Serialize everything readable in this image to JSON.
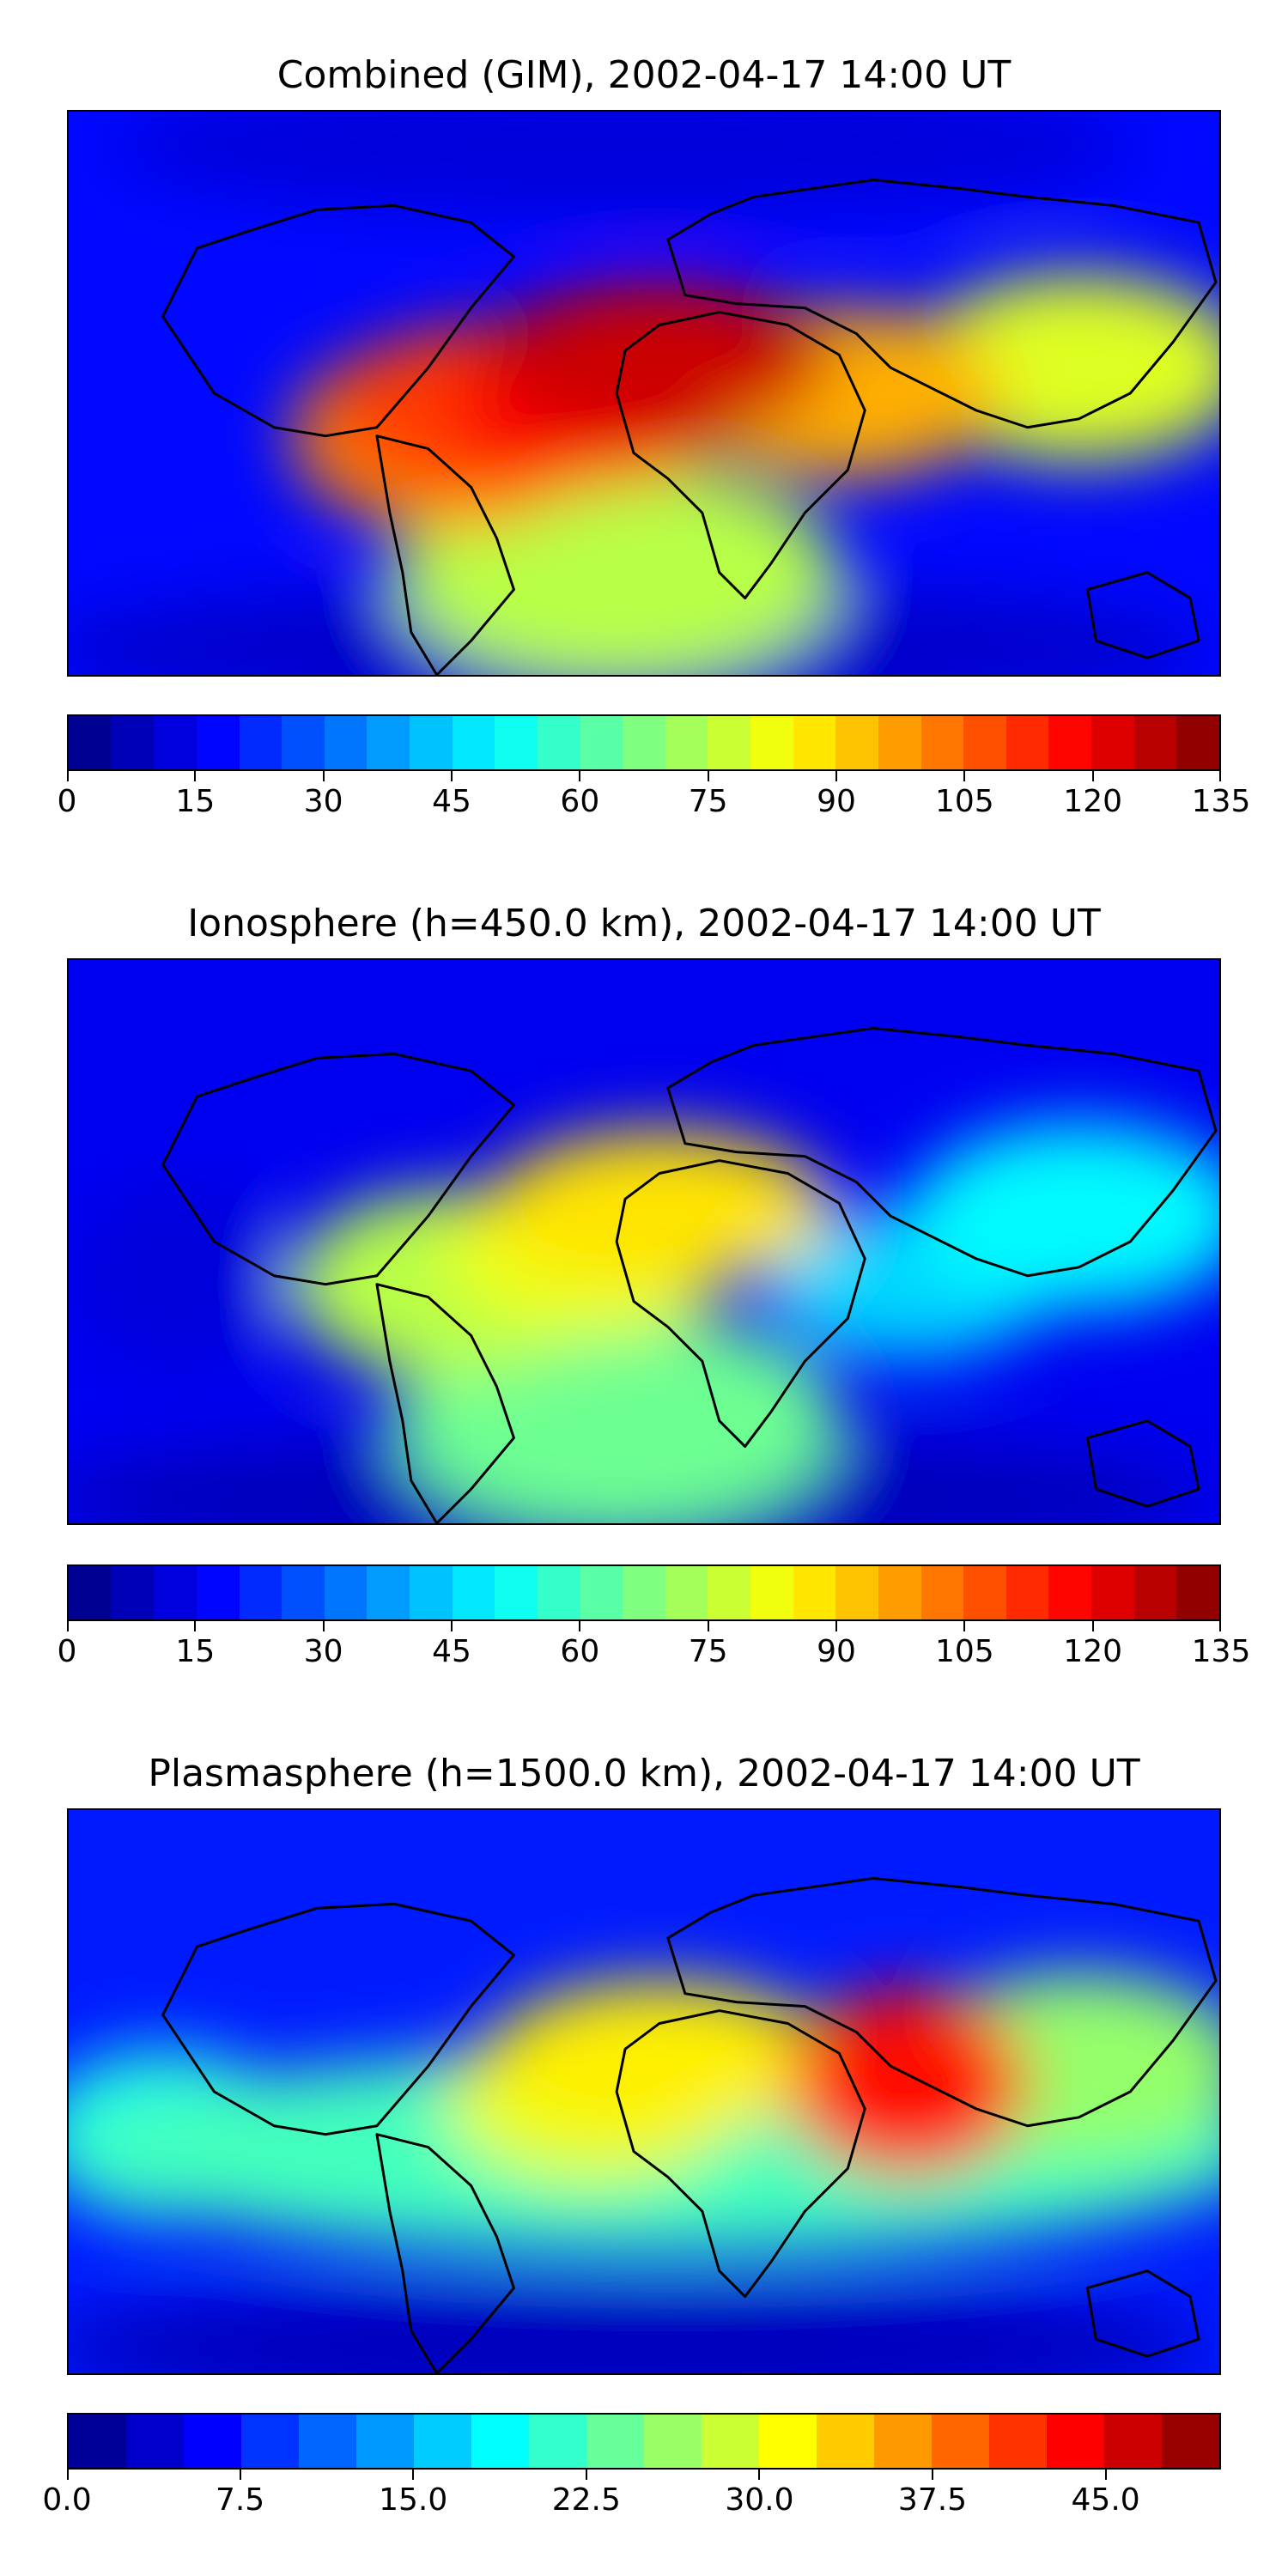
{
  "chart_data": [
    {
      "type": "heatmap",
      "title": "Combined (GIM), 2002-04-17 14:00 UT",
      "colormap": "jet",
      "colorbar": {
        "min": 0,
        "max": 135,
        "levels": 27,
        "ticks": [
          0,
          15,
          30,
          45,
          60,
          75,
          90,
          105,
          120,
          135
        ],
        "tick_labels": [
          "0",
          "15",
          "30",
          "45",
          "60",
          "75",
          "90",
          "105",
          "120",
          "135"
        ]
      },
      "background_level": 18,
      "features": [
        {
          "region": "north-africa",
          "value": 125
        },
        {
          "region": "west-africa",
          "value": 118
        },
        {
          "region": "tropical-atlantic",
          "value": 110
        },
        {
          "region": "south-america-north",
          "value": 100
        },
        {
          "region": "arabia-indian-ocean",
          "value": 95
        },
        {
          "region": "southeast-asia",
          "value": 80
        },
        {
          "region": "south-atlantic",
          "value": 75
        },
        {
          "region": "polar-north",
          "value": 12
        },
        {
          "region": "polar-south",
          "value": 10
        }
      ]
    },
    {
      "type": "heatmap",
      "title": "Ionosphere  (h=450.0 km), 2002-04-17 14:00 UT",
      "colormap": "jet",
      "colorbar": {
        "min": 0,
        "max": 135,
        "levels": 27,
        "ticks": [
          0,
          15,
          30,
          45,
          60,
          75,
          90,
          105,
          120,
          135
        ],
        "tick_labels": [
          "0",
          "15",
          "30",
          "45",
          "60",
          "75",
          "90",
          "105",
          "120",
          "135"
        ]
      },
      "background_level": 15,
      "features": [
        {
          "region": "north-africa",
          "value": 88
        },
        {
          "region": "west-africa",
          "value": 82
        },
        {
          "region": "south-america-north",
          "value": 75
        },
        {
          "region": "south-atlantic",
          "value": 65
        },
        {
          "region": "southeast-asia",
          "value": 50
        },
        {
          "region": "indian-ocean",
          "value": 45
        },
        {
          "region": "pacific-west",
          "value": 12
        },
        {
          "region": "polar-south",
          "value": 8
        }
      ]
    },
    {
      "type": "heatmap",
      "title": "Plasmasphere (h=1500.0 km), 2002-04-17 14:00 UT",
      "colormap": "jet",
      "colorbar": {
        "min": 0.0,
        "max": 50.0,
        "levels": 20,
        "ticks": [
          0.0,
          7.5,
          15.0,
          22.5,
          30.0,
          37.5,
          45.0
        ],
        "tick_labels": [
          "0.0",
          "7.5",
          "15.0",
          "22.5",
          "30.0",
          "37.5",
          "45.0"
        ]
      },
      "background_level": 7.5,
      "features": [
        {
          "region": "india",
          "value": 43
        },
        {
          "region": "north-africa",
          "value": 32
        },
        {
          "region": "west-africa",
          "value": 30
        },
        {
          "region": "southeast-asia",
          "value": 26
        },
        {
          "region": "tropical-band",
          "value": 22
        },
        {
          "region": "pacific-east",
          "value": 20
        },
        {
          "region": "polar-south",
          "value": 3
        }
      ]
    }
  ]
}
